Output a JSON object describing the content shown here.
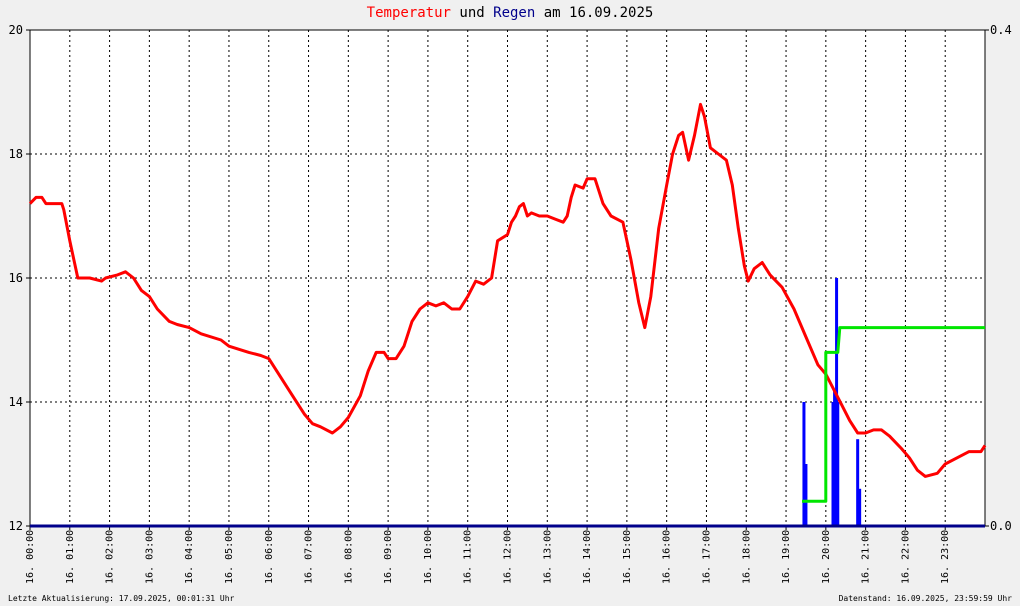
{
  "header": {
    "title_part1": "Temperatur",
    "title_part2": "und",
    "title_part3": "Regen",
    "title_part4": "am 16.09.2025",
    "color_temp": "#ff0000",
    "color_rain": "#00008b",
    "color_text": "#000000"
  },
  "footer": {
    "left": "Letzte Aktualisierung: 17.09.2025, 00:01:31 Uhr",
    "right": "Datenstand: 16.09.2025, 23:59:59 Uhr"
  },
  "chart_data": {
    "type": "line",
    "grid": true,
    "x_tick_labels": [
      "16. 00:00",
      "16. 01:00",
      "16. 02:00",
      "16. 03:00",
      "16. 04:00",
      "16. 05:00",
      "16. 06:00",
      "16. 07:00",
      "16. 08:00",
      "16. 09:00",
      "16. 10:00",
      "16. 11:00",
      "16. 12:00",
      "16. 13:00",
      "16. 14:00",
      "16. 15:00",
      "16. 16:00",
      "16. 17:00",
      "16. 18:00",
      "16. 19:00",
      "16. 20:00",
      "16. 21:00",
      "16. 22:00",
      "16. 23:00"
    ],
    "xlim_hours": [
      0,
      24
    ],
    "y_left": {
      "ylim": [
        12,
        20
      ],
      "ticks": [
        "12",
        "14",
        "16",
        "18",
        "20"
      ]
    },
    "y_right": {
      "ylim": [
        0,
        0.4
      ],
      "ticks": [
        "0.0",
        "0.4"
      ]
    },
    "colors": {
      "temperature": "#ff0000",
      "rain_bars": "#0000ff",
      "rain_sum": "#00e600",
      "axis_bottom": "#00008b"
    },
    "series": [
      {
        "axis": "left",
        "points": [
          [
            0,
            17.2
          ],
          [
            0.15,
            17.3
          ],
          [
            0.3,
            17.3
          ],
          [
            0.4,
            17.2
          ],
          [
            0.8,
            17.2
          ],
          [
            0.85,
            17.1
          ],
          [
            1.0,
            16.6
          ],
          [
            1.1,
            16.3
          ],
          [
            1.2,
            16.0
          ],
          [
            1.5,
            16.0
          ],
          [
            1.8,
            15.95
          ],
          [
            1.9,
            16.0
          ],
          [
            2.2,
            16.05
          ],
          [
            2.4,
            16.1
          ],
          [
            2.6,
            16.0
          ],
          [
            2.8,
            15.8
          ],
          [
            3.0,
            15.7
          ],
          [
            3.2,
            15.5
          ],
          [
            3.5,
            15.3
          ],
          [
            3.7,
            15.25
          ],
          [
            4.0,
            15.2
          ],
          [
            4.3,
            15.1
          ],
          [
            4.8,
            15.0
          ],
          [
            5.0,
            14.9
          ],
          [
            5.5,
            14.8
          ],
          [
            5.8,
            14.75
          ],
          [
            6.0,
            14.7
          ],
          [
            6.3,
            14.4
          ],
          [
            6.6,
            14.1
          ],
          [
            6.9,
            13.8
          ],
          [
            7.1,
            13.65
          ],
          [
            7.3,
            13.6
          ],
          [
            7.6,
            13.5
          ],
          [
            7.8,
            13.6
          ],
          [
            8.0,
            13.75
          ],
          [
            8.3,
            14.1
          ],
          [
            8.5,
            14.5
          ],
          [
            8.7,
            14.8
          ],
          [
            8.9,
            14.8
          ],
          [
            9.0,
            14.7
          ],
          [
            9.2,
            14.7
          ],
          [
            9.4,
            14.9
          ],
          [
            9.6,
            15.3
          ],
          [
            9.8,
            15.5
          ],
          [
            10.0,
            15.6
          ],
          [
            10.2,
            15.55
          ],
          [
            10.4,
            15.6
          ],
          [
            10.6,
            15.5
          ],
          [
            10.8,
            15.5
          ],
          [
            11.0,
            15.7
          ],
          [
            11.2,
            15.95
          ],
          [
            11.4,
            15.9
          ],
          [
            11.6,
            16.0
          ],
          [
            11.75,
            16.6
          ],
          [
            12.0,
            16.7
          ],
          [
            12.1,
            16.9
          ],
          [
            12.2,
            17.0
          ],
          [
            12.3,
            17.15
          ],
          [
            12.4,
            17.2
          ],
          [
            12.5,
            17.0
          ],
          [
            12.6,
            17.05
          ],
          [
            12.8,
            17.0
          ],
          [
            13.0,
            17.0
          ],
          [
            13.2,
            16.95
          ],
          [
            13.4,
            16.9
          ],
          [
            13.5,
            17.0
          ],
          [
            13.6,
            17.3
          ],
          [
            13.7,
            17.5
          ],
          [
            13.9,
            17.45
          ],
          [
            14.0,
            17.6
          ],
          [
            14.2,
            17.6
          ],
          [
            14.4,
            17.2
          ],
          [
            14.6,
            17.0
          ],
          [
            14.9,
            16.9
          ],
          [
            15.1,
            16.3
          ],
          [
            15.3,
            15.6
          ],
          [
            15.45,
            15.2
          ],
          [
            15.6,
            15.7
          ],
          [
            15.8,
            16.8
          ],
          [
            16.0,
            17.5
          ],
          [
            16.15,
            18.0
          ],
          [
            16.3,
            18.3
          ],
          [
            16.4,
            18.35
          ],
          [
            16.55,
            17.9
          ],
          [
            16.7,
            18.3
          ],
          [
            16.85,
            18.8
          ],
          [
            16.95,
            18.6
          ],
          [
            17.1,
            18.1
          ],
          [
            17.3,
            18.0
          ],
          [
            17.5,
            17.9
          ],
          [
            17.65,
            17.5
          ],
          [
            17.8,
            16.8
          ],
          [
            17.95,
            16.2
          ],
          [
            18.05,
            15.95
          ],
          [
            18.2,
            16.15
          ],
          [
            18.4,
            16.25
          ],
          [
            18.6,
            16.05
          ],
          [
            18.9,
            15.85
          ],
          [
            19.2,
            15.5
          ],
          [
            19.5,
            15.05
          ],
          [
            19.8,
            14.6
          ],
          [
            20.0,
            14.45
          ],
          [
            20.2,
            14.2
          ],
          [
            20.4,
            13.95
          ],
          [
            20.6,
            13.7
          ],
          [
            20.8,
            13.5
          ],
          [
            21.0,
            13.5
          ],
          [
            21.2,
            13.55
          ],
          [
            21.4,
            13.55
          ],
          [
            21.6,
            13.45
          ],
          [
            21.9,
            13.25
          ],
          [
            22.1,
            13.1
          ],
          [
            22.3,
            12.9
          ],
          [
            22.5,
            12.8
          ],
          [
            22.8,
            12.85
          ],
          [
            23.0,
            13.0
          ],
          [
            23.3,
            13.1
          ],
          [
            23.6,
            13.2
          ],
          [
            23.9,
            13.2
          ],
          [
            24.0,
            13.3
          ]
        ]
      },
      {
        "axis": "right",
        "points": [
          [
            19.4,
            0.02
          ],
          [
            20.0,
            0.02
          ],
          [
            20.0,
            0.14
          ],
          [
            20.3,
            0.14
          ],
          [
            20.35,
            0.16
          ],
          [
            21.0,
            0.16
          ],
          [
            24.0,
            0.16
          ]
        ]
      }
    ],
    "bars": [
      {
        "x": 19.45,
        "value": 0.1
      },
      {
        "x": 19.5,
        "value": 0.05
      },
      {
        "x": 20.18,
        "value": 0.1
      },
      {
        "x": 20.22,
        "value": 0.11
      },
      {
        "x": 20.27,
        "value": 0.2
      },
      {
        "x": 20.3,
        "value": 0.1
      },
      {
        "x": 20.8,
        "value": 0.07
      },
      {
        "x": 20.85,
        "value": 0.03
      }
    ]
  }
}
